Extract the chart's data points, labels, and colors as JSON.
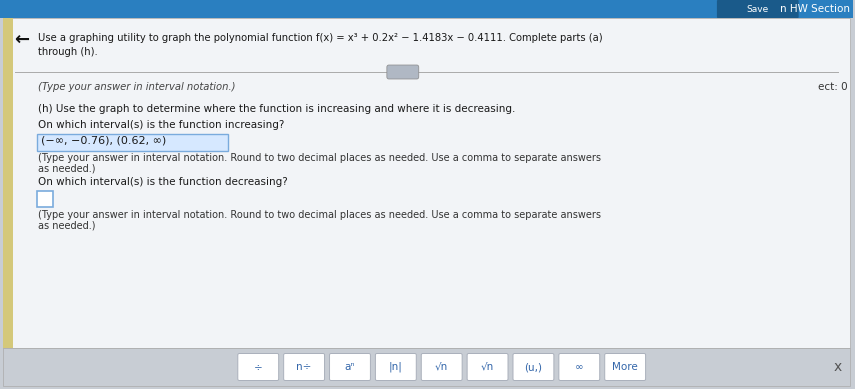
{
  "bg_color": "#c8cdd4",
  "panel_color": "#eef0f3",
  "white_color": "#f2f4f7",
  "top_bar_color": "#2a7fc0",
  "hw_section_label": "n HW Section",
  "title_text_line1": "Use a graphing utility to graph the polynomial function f(x) = x³ + 0.2x² − 1.4183x − 0.4111. Complete parts (a)",
  "title_text_line2": "through (h).",
  "arrow_label": "←",
  "type_note_top": "(Type your answer in interval notation.)",
  "ect_label": "ect: 0",
  "part_h_label": "(h) Use the graph to determine where the function is increasing and where it is decreasing.",
  "increasing_question": "On which interval(s) is the function increasing?",
  "increasing_answer": "(−∞, −0.76), (0.62, ∞)",
  "increasing_note_line1": "(Type your answer in interval notation. Round to two decimal places as needed. Use a comma to separate answers",
  "increasing_note_line2": "as needed.)",
  "decreasing_question": "On which interval(s) is the function decreasing?",
  "decreasing_note_line1": "(Type your answer in interval notation. Round to two decimal places as needed. Use a comma to separate answers",
  "decreasing_note_line2": "as needed.)",
  "bottom_buttons": [
    "÷",
    "n÷",
    "aⁿ",
    "|n|",
    "√n",
    "√n",
    "(u,)",
    "∞",
    "More"
  ],
  "close_x": "x",
  "answer_box_color": "#d6e8ff",
  "answer_box_border": "#7aabdd",
  "input_box_color": "#ffffff",
  "input_box_border": "#7aabdd",
  "text_color": "#1a1a1a",
  "note_color": "#333333",
  "italic_color": "#444444",
  "left_accent_color": "#d4c87a",
  "slider_color": "#b0b8c4",
  "toolbar_bg": "#c8cdd4",
  "btn_color": "#ffffff",
  "btn_border": "#aab0bb",
  "btn_text_color": "#3366aa"
}
